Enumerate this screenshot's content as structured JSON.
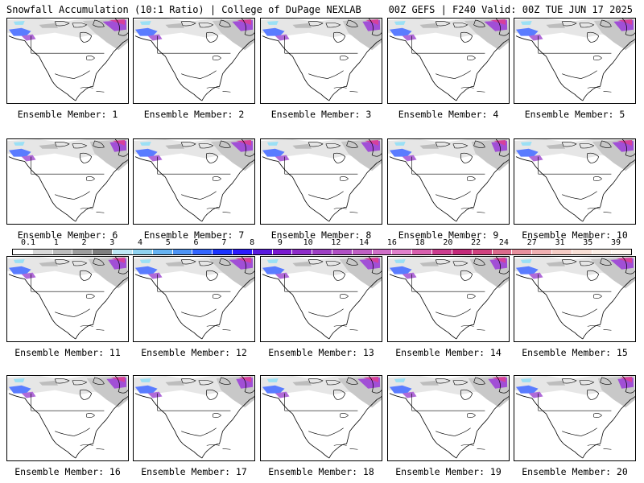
{
  "header": {
    "title_left": "Snowfall Accumulation (10:1 Ratio) | College of DuPage NEXLAB",
    "title_right": "00Z GEFS | F240 Valid: 00Z TUE JUN 17 2025"
  },
  "panels": [
    {
      "label": "Ensemble Member: 1"
    },
    {
      "label": "Ensemble Member: 2"
    },
    {
      "label": "Ensemble Member: 3"
    },
    {
      "label": "Ensemble Member: 4"
    },
    {
      "label": "Ensemble Member: 5"
    },
    {
      "label": "Ensemble Member: 6"
    },
    {
      "label": "Ensemble Member: 7"
    },
    {
      "label": "Ensemble Member: 8"
    },
    {
      "label": "Ensemble Member: 9"
    },
    {
      "label": "Ensemble Member: 10"
    },
    {
      "label": "Ensemble Member: 11"
    },
    {
      "label": "Ensemble Member: 12"
    },
    {
      "label": "Ensemble Member: 13"
    },
    {
      "label": "Ensemble Member: 14"
    },
    {
      "label": "Ensemble Member: 15"
    },
    {
      "label": "Ensemble Member: 16"
    },
    {
      "label": "Ensemble Member: 17"
    },
    {
      "label": "Ensemble Member: 18"
    },
    {
      "label": "Ensemble Member: 19"
    },
    {
      "label": "Ensemble Member: 20"
    }
  ],
  "legend": {
    "labels": [
      "0.1",
      "1",
      "2",
      "3",
      "4",
      "5",
      "6",
      "7",
      "8",
      "9",
      "10",
      "12",
      "14",
      "16",
      "18",
      "20",
      "22",
      "24",
      "27",
      "31",
      "35",
      "39"
    ],
    "colors": [
      "#ffffff",
      "#d9d9d9",
      "#bdbdbd",
      "#9e9e9e",
      "#808080",
      "#bfe8f5",
      "#8fd3f0",
      "#66b3f2",
      "#4d94f5",
      "#3366ff",
      "#1a33ff",
      "#2c1aff",
      "#5a1adf",
      "#7a1ad0",
      "#8e2cc9",
      "#9e40c4",
      "#b050c4",
      "#c060c4",
      "#d070c8",
      "#e080cc",
      "#d85fae",
      "#cc3d8f",
      "#c42a7a",
      "#d0437f",
      "#dc6a8c",
      "#e8909e",
      "#f0b0b2",
      "#f6cdc6",
      "#f9e0d6",
      "#fcefe6",
      "#fff7f0"
    ]
  }
}
